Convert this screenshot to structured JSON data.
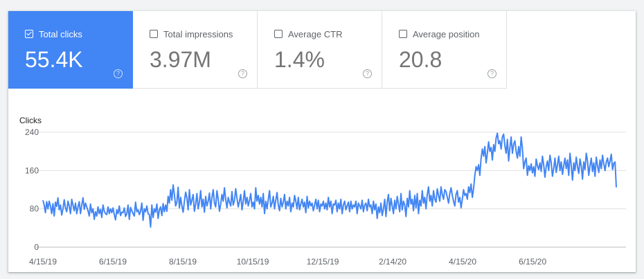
{
  "metrics": [
    {
      "label": "Total clicks",
      "value": "55.4K",
      "help": "?",
      "checked": true
    },
    {
      "label": "Total impressions",
      "value": "3.97M",
      "help": "?",
      "checked": false
    },
    {
      "label": "Average CTR",
      "value": "1.4%",
      "help": "?",
      "checked": false
    },
    {
      "label": "Average position",
      "value": "20.8",
      "help": "?",
      "checked": false
    }
  ],
  "colors": {
    "accent": "#4285f4",
    "line": "#4285f4",
    "grid": "#e0e0e0"
  },
  "chart_data": {
    "type": "line",
    "ylabel": "Clicks",
    "ylim": [
      0,
      240
    ],
    "yticks": [
      0,
      80,
      160,
      240
    ],
    "xticks": [
      "4/15/19",
      "6/15/19",
      "8/15/19",
      "10/15/19",
      "12/15/19",
      "2/14/20",
      "4/15/20",
      "6/15/20"
    ],
    "x_start": "4/15/19",
    "x_end": "8/27/20",
    "grid": true,
    "series": [
      {
        "values": [
          98,
          88,
          72,
          95,
          80,
          96,
          86,
          70,
          91,
          65,
          94,
          85,
          103,
          78,
          88,
          67,
          80,
          99,
          82,
          74,
          96,
          86,
          70,
          100,
          88,
          76,
          92,
          70,
          84,
          95,
          70,
          88,
          103,
          79,
          92,
          84,
          76,
          65,
          90,
          72,
          80,
          58,
          74,
          65,
          84,
          70,
          79,
          62,
          88,
          75,
          70,
          68,
          84,
          70,
          80,
          72,
          82,
          68,
          57,
          78,
          70,
          86,
          66,
          73,
          72,
          82,
          64,
          70,
          88,
          58,
          83,
          76,
          70,
          65,
          94,
          74,
          78,
          68,
          75,
          92,
          56,
          80,
          74,
          86,
          70,
          68,
          42,
          88,
          62,
          80,
          73,
          90,
          60,
          78,
          84,
          66,
          91,
          74,
          88,
          75,
          106,
          92,
          120,
          98,
          130,
          110,
          86,
          94,
          125,
          82,
          104,
          86,
          73,
          96,
          115,
          103,
          78,
          120,
          88,
          98,
          110,
          75,
          90,
          112,
          80,
          95,
          118,
          84,
          100,
          73,
          106,
          86,
          96,
          113,
          80,
          104,
          120,
          92,
          84,
          118,
          100,
          75,
          90,
          110,
          96,
          124,
          100,
          82,
          104,
          94,
          86,
          116,
          88,
          98,
          122,
          102,
          84,
          96,
          110,
          78,
          96,
          118,
          90,
          104,
          86,
          98,
          112,
          84,
          94,
          80,
          124,
          96,
          108,
          90,
          104,
          84,
          112,
          70,
          96,
          80,
          100,
          118,
          84,
          92,
          106,
          80,
          98,
          114,
          88,
          76,
          102,
          84,
          94,
          110,
          80,
          96,
          86,
          104,
          74,
          92,
          84,
          108,
          96,
          80,
          104,
          78,
          90,
          100,
          84,
          94,
          72,
          106,
          82,
          96,
          86,
          92,
          76,
          88,
          100,
          80,
          98,
          74,
          90,
          86,
          96,
          80,
          92,
          78,
          104,
          84,
          96,
          70,
          90,
          88,
          98,
          74,
          92,
          80,
          100,
          70,
          88,
          96,
          78,
          86,
          94,
          74,
          96,
          80,
          88,
          84,
          96,
          70,
          92,
          86,
          80,
          98,
          74,
          88,
          92,
          76,
          100,
          84,
          88,
          70,
          96,
          78,
          90,
          60,
          84,
          72,
          92,
          66,
          80,
          100,
          64,
          94,
          110,
          76,
          102,
          86,
          70,
          98,
          80,
          106,
          90,
          74,
          112,
          78,
          96,
          88,
          64,
          102,
          84,
          118,
          90,
          100,
          76,
          108,
          82,
          112,
          70,
          98,
          86,
          118,
          92,
          104,
          80,
          110,
          126,
          96,
          108,
          86,
          118,
          100,
          94,
          122,
          108,
          96,
          126,
          110,
          100,
          120,
          116,
          104,
          92,
          112,
          124,
          108,
          96,
          86,
          110,
          118,
          94,
          104,
          82,
          100,
          120,
          108,
          112,
          100,
          126,
          114,
          132,
          104,
          122,
          150,
          168,
          160,
          172,
          150,
          186,
          205,
          190,
          210,
          176,
          196,
          220,
          200,
          208,
          182,
          214,
          200,
          228,
          238,
          216,
          222,
          205,
          230,
          236,
          212,
          196,
          225,
          180,
          208,
          230,
          196,
          215,
          222,
          200,
          186,
          210,
          190,
          230,
          206,
          164,
          178,
          186,
          150,
          170,
          160,
          174,
          155,
          168,
          148,
          184,
          170,
          162,
          176,
          158,
          190,
          172,
          146,
          168,
          180,
          160,
          192,
          176,
          148,
          164,
          186,
          156,
          172,
          190,
          160,
          178,
          152,
          170,
          186,
          164,
          182,
          150,
          196,
          170,
          140,
          176,
          160,
          188,
          168,
          154,
          184,
          170,
          142,
          178,
          162,
          196,
          180,
          150,
          170,
          186,
          158,
          176,
          148,
          188,
          170,
          156,
          182,
          164,
          192,
          174,
          160,
          178,
          186,
          168,
          180,
          194,
          162,
          175,
          178,
          125
        ]
      }
    ]
  }
}
